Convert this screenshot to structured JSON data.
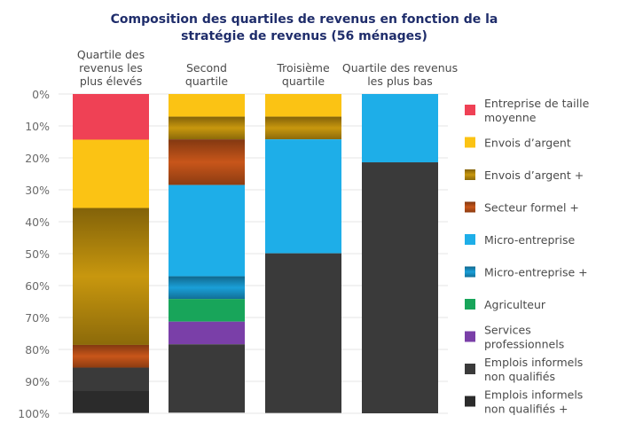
{
  "chart_data": {
    "type": "bar",
    "stacked": true,
    "orientation": "vertical",
    "title": "Composition des quartiles de revenus en fonction de la stratégie de revenus (56 ménages)",
    "title_lines": [
      "Composition des quartiles de revenus en fonction de la",
      "stratégie de revenus (56 ménages)"
    ],
    "categories": [
      "Quartile des revenus les plus élevés",
      "Second quartile",
      "Troisième quartile",
      "Quartile des revenus les plus bas"
    ],
    "category_lines": [
      [
        "Quartile des",
        "revenus les",
        "plus élevés"
      ],
      [
        "Second",
        "quartile"
      ],
      [
        "Troisième",
        "quartile"
      ],
      [
        "Quartile des revenus",
        "les plus bas"
      ]
    ],
    "ylim": [
      0,
      100
    ],
    "y_ticks": [
      "0%",
      "10%",
      "20%",
      "30%",
      "40%",
      "50%",
      "60%",
      "70%",
      "80%",
      "90%",
      "100%"
    ],
    "y_axis_inverted": true,
    "grid": true,
    "legend_position": "right",
    "series": [
      {
        "name": "Entreprise de taille moyenne",
        "legend_lines": [
          "Entreprise de taille",
          "moyenne"
        ],
        "color": "#ef4155",
        "values": [
          14.3,
          0,
          0,
          0
        ]
      },
      {
        "name": "Envois d'argent",
        "legend_lines": [
          "Envois d’argent"
        ],
        "color": "#fbc314",
        "values": [
          21.4,
          7.1,
          7.1,
          0
        ]
      },
      {
        "name": "Envois d'argent +",
        "legend_lines": [
          "Envois d’argent +"
        ],
        "color": "#c8970e",
        "gradient": true,
        "values": [
          42.9,
          7.1,
          7.1,
          0
        ]
      },
      {
        "name": "Secteur formel +",
        "legend_lines": [
          "Secteur formel +"
        ],
        "color": "#c8561a",
        "gradient": true,
        "values": [
          7.1,
          14.3,
          0,
          0
        ]
      },
      {
        "name": "Micro-entreprise",
        "legend_lines": [
          "Micro-entreprise"
        ],
        "color": "#1eaee8",
        "values": [
          0,
          28.6,
          35.7,
          21.4
        ]
      },
      {
        "name": "Micro-entreprise +",
        "legend_lines": [
          "Micro-entreprise +"
        ],
        "color": "#1a9fd8",
        "gradient": true,
        "values": [
          0,
          7.1,
          0,
          0
        ]
      },
      {
        "name": "Agriculteur",
        "legend_lines": [
          "Agriculteur"
        ],
        "color": "#18a55a",
        "values": [
          0,
          7.1,
          0,
          0
        ]
      },
      {
        "name": "Services professionnels",
        "legend_lines": [
          "Services",
          "professionnels"
        ],
        "color": "#7a3fa8",
        "values": [
          0,
          7.1,
          0,
          0
        ]
      },
      {
        "name": "Emplois informels non qualifiés",
        "legend_lines": [
          "Emplois informels",
          "non qualifiés"
        ],
        "color": "#3a3a3a",
        "values": [
          7.1,
          21.4,
          50.0,
          78.6
        ]
      },
      {
        "name": "Emplois informels non qualifiés +",
        "legend_lines": [
          "Emplois informels",
          "non qualifiés +"
        ],
        "color": "#2b2b2b",
        "values": [
          7.1,
          0,
          0,
          0
        ]
      }
    ]
  },
  "colors": {
    "title": "#1f2d6b",
    "label": "#4a4a4a",
    "tick": "#6b6b6b",
    "legend_text": "#4a4a4a"
  }
}
